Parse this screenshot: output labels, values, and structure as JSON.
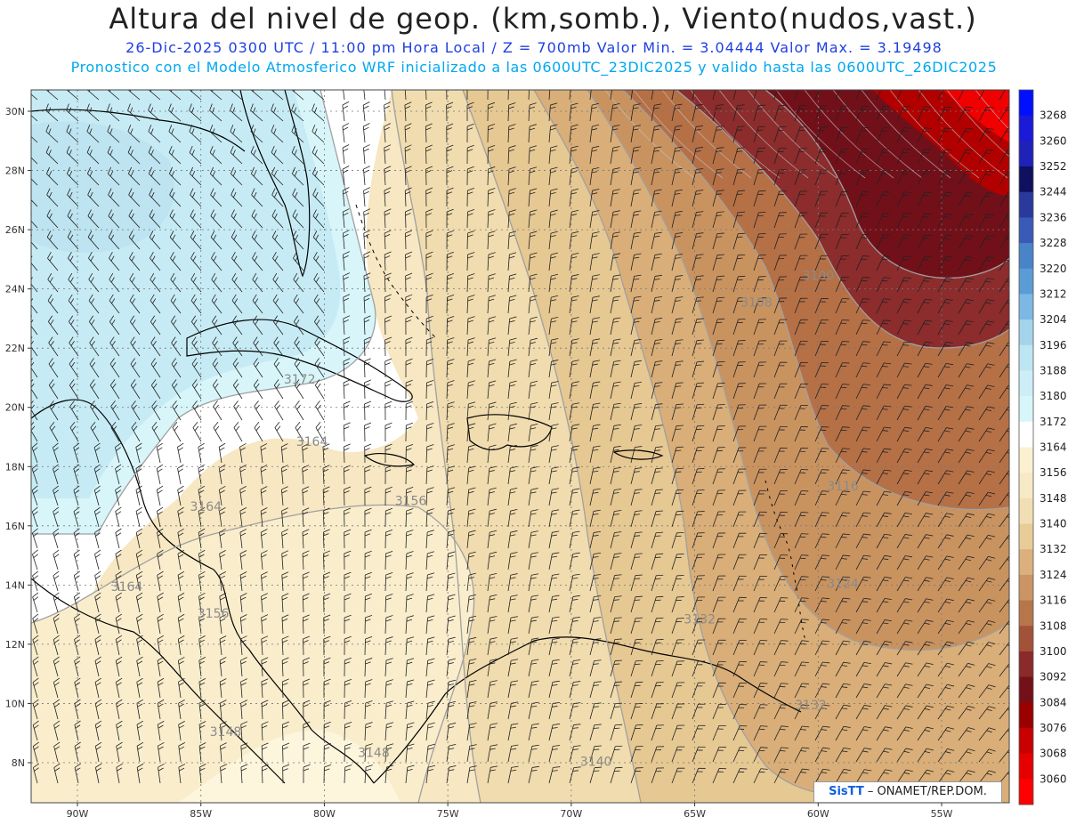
{
  "header": {
    "title": "Altura del nivel de geop. (km,somb.), Viento(nudos,vast.)",
    "subtitle1": "26-Dic-2025  0300 UTC / 11:00 pm Hora Local / Z = 700mb   Valor Min. = 3.04444  Valor Max. = 3.19498",
    "subtitle2": "Pronostico con el Modelo Atmosferico WRF inicializado a las 0600UTC_23DIC2025 y valido hasta las  0600UTC_26DIC2025"
  },
  "map": {
    "lat_labels": [
      "30N",
      "28N",
      "26N",
      "24N",
      "22N",
      "20N",
      "18N",
      "16N",
      "14N",
      "12N",
      "10N",
      "8N"
    ],
    "lon_labels": [
      "90W",
      "85W",
      "80W",
      "75W",
      "70W",
      "65W",
      "60W",
      "55W"
    ],
    "contour_labels": [
      {
        "text": "3100",
        "lon": -60.0,
        "lat": 24.3
      },
      {
        "text": "3108",
        "lon": -62.5,
        "lat": 23.4
      },
      {
        "text": "3116",
        "lon": -59.0,
        "lat": 17.2
      },
      {
        "text": "3124",
        "lon": -59.0,
        "lat": 13.9
      },
      {
        "text": "3132",
        "lon": -64.8,
        "lat": 12.7
      },
      {
        "text": "3132",
        "lon": -60.3,
        "lat": 9.8
      },
      {
        "text": "3140",
        "lon": -69.0,
        "lat": 7.9
      },
      {
        "text": "3148",
        "lon": -78.0,
        "lat": 8.2
      },
      {
        "text": "3148",
        "lon": -84.0,
        "lat": 8.9
      },
      {
        "text": "3156",
        "lon": -76.5,
        "lat": 16.7
      },
      {
        "text": "3156",
        "lon": -84.5,
        "lat": 12.9
      },
      {
        "text": "3164",
        "lon": -80.5,
        "lat": 18.7
      },
      {
        "text": "3164",
        "lon": -84.8,
        "lat": 16.5
      },
      {
        "text": "3164",
        "lon": -88.0,
        "lat": 13.8
      },
      {
        "text": "3172",
        "lon": -81.0,
        "lat": 20.8
      }
    ]
  },
  "colorbar": {
    "labels": [
      "3268",
      "3260",
      "3252",
      "3244",
      "3236",
      "3228",
      "3220",
      "3212",
      "3204",
      "3196",
      "3188",
      "3180",
      "3172",
      "3164",
      "3156",
      "3148",
      "3140",
      "3132",
      "3124",
      "3116",
      "3108",
      "3100",
      "3092",
      "3084",
      "3076",
      "3068",
      "3060"
    ],
    "colors": [
      "#0010ff",
      "#1a1ad8",
      "#1e22b8",
      "#101060",
      "#2a3a9c",
      "#3a5ab8",
      "#4a84c8",
      "#5c9cd6",
      "#7cb8e4",
      "#a4d4ec",
      "#bce6f2",
      "#cdeef6",
      "#d8f6fa",
      "#ffffff",
      "#fbf1d0",
      "#f7e9c6",
      "#f2deb4",
      "#e8cc98",
      "#dbb07c",
      "#ca9464",
      "#b6764a",
      "#a25238",
      "#8a2a2a",
      "#74101a",
      "#9a0000",
      "#c80000",
      "#e60000",
      "#ff0000"
    ]
  },
  "credit": {
    "brand": "SisTT",
    "org": "– ONAMET/REP.DOM."
  }
}
